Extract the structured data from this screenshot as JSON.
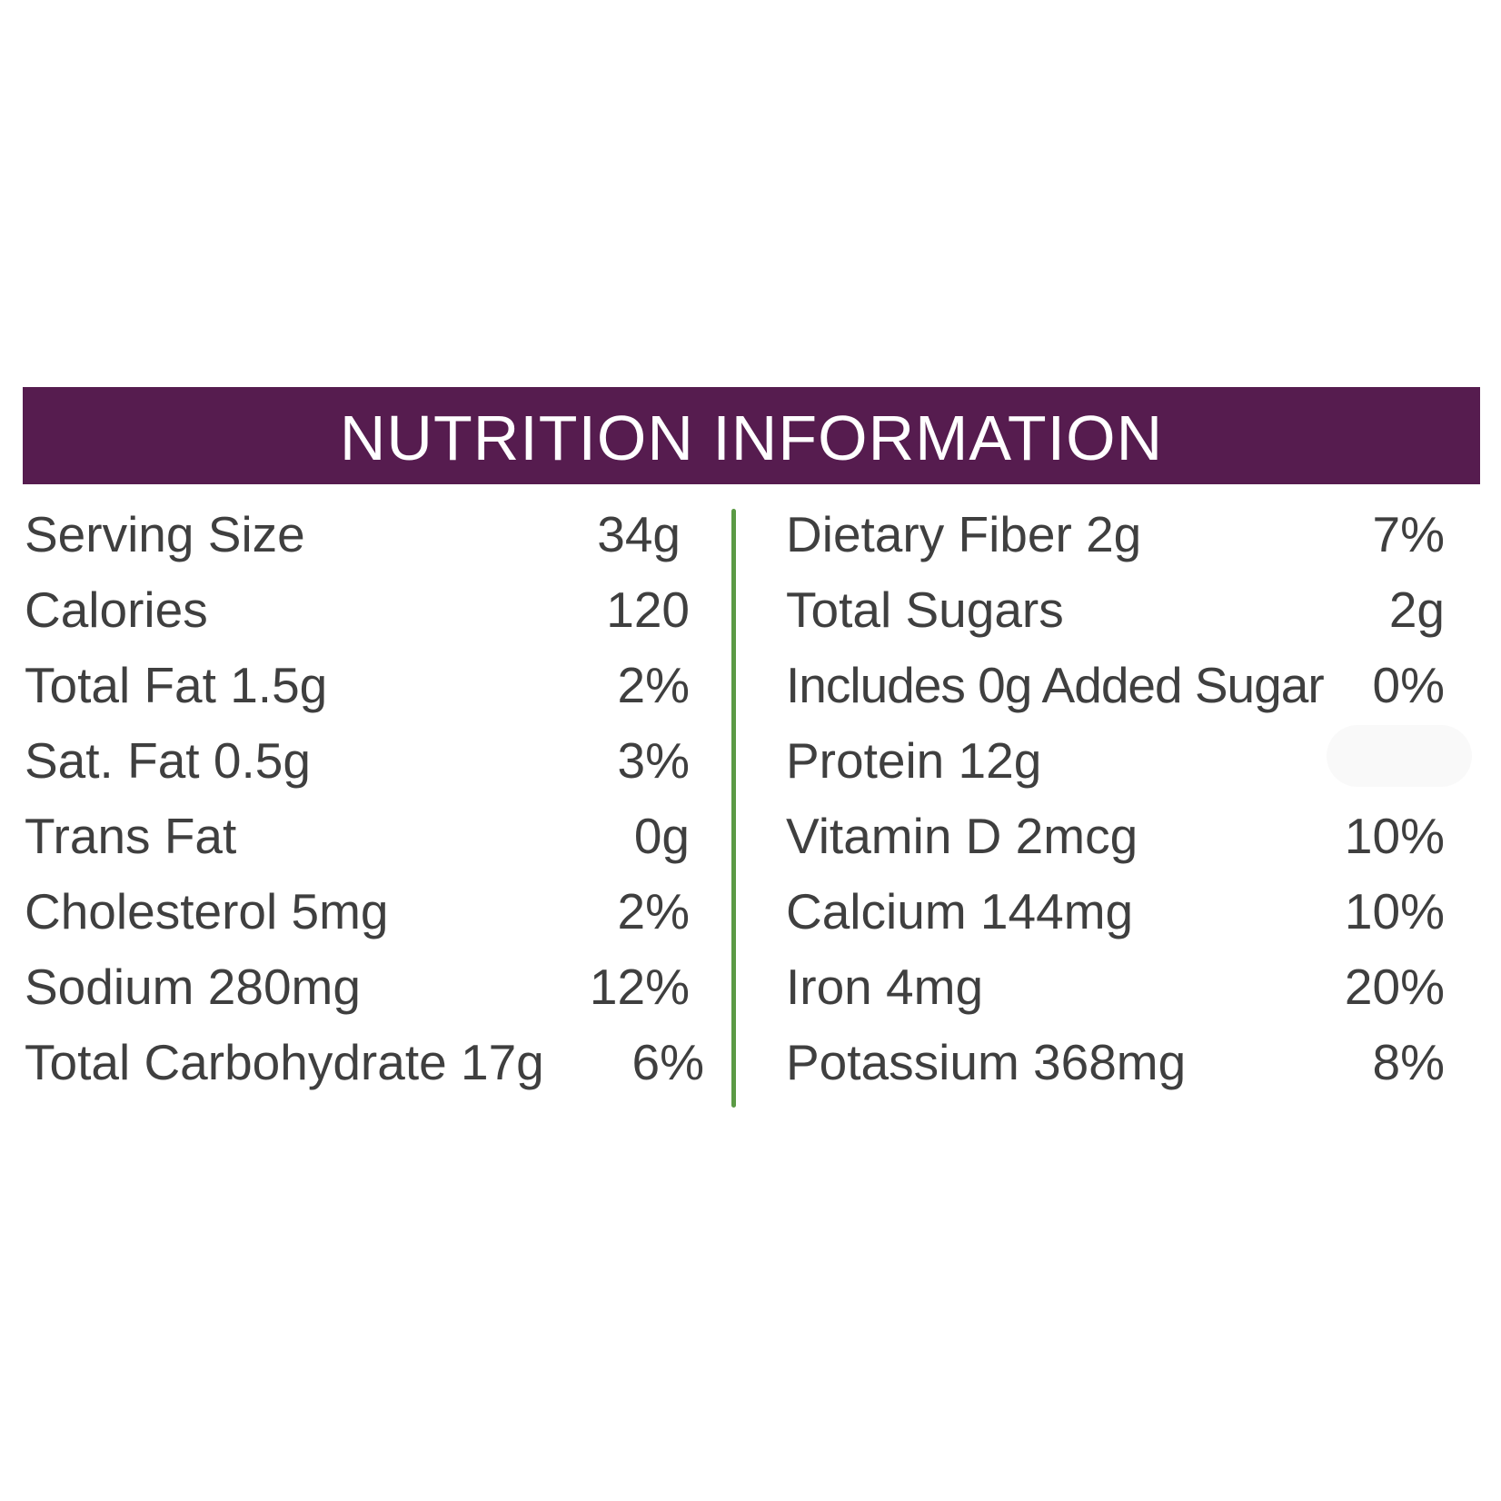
{
  "header": {
    "title": "NUTRITION INFORMATION"
  },
  "colors": {
    "header_bg": "#561c4f",
    "header_text": "#ffffff",
    "divider": "#5b9a45",
    "body_text": "#3f3f3f"
  },
  "left_column": [
    {
      "label": "Serving Size",
      "value": "34g"
    },
    {
      "label": "Calories",
      "value": "120"
    },
    {
      "label": "Total Fat 1.5g",
      "value": "2%"
    },
    {
      "label": "Sat. Fat 0.5g",
      "value": "3%"
    },
    {
      "label": "Trans Fat",
      "value": "0g"
    },
    {
      "label": "Cholesterol 5mg",
      "value": "2%"
    },
    {
      "label": "Sodium 280mg",
      "value": "12%"
    },
    {
      "label": "Total Carbohydrate 17g",
      "value": "6%"
    }
  ],
  "right_column": [
    {
      "label": "Dietary Fiber 2g",
      "value": "7%"
    },
    {
      "label": "Total Sugars",
      "value": "2g"
    },
    {
      "label": "Includes 0g Added Sugar",
      "value": "0%"
    },
    {
      "label": "Protein 12g",
      "value": ""
    },
    {
      "label": "Vitamin D 2mcg",
      "value": "10%"
    },
    {
      "label": "Calcium 144mg",
      "value": "10%"
    },
    {
      "label": "Iron 4mg",
      "value": "20%"
    },
    {
      "label": "Potassium 368mg",
      "value": "8%"
    }
  ]
}
